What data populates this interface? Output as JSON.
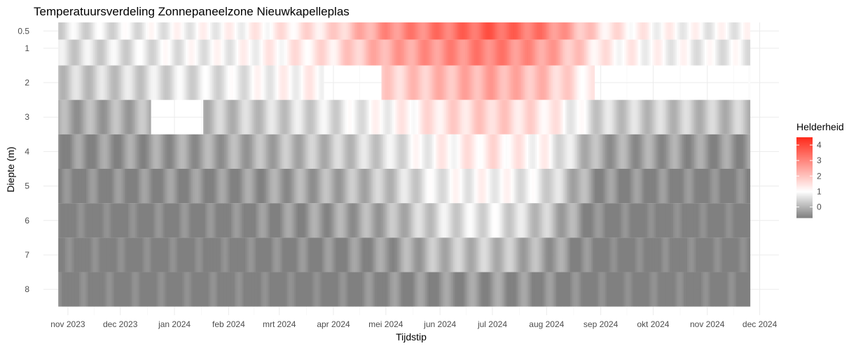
{
  "chart_data": {
    "type": "heatmap",
    "title": "Temperatuursverdeling Zonnepaneelzone Nieuwkapelleplas",
    "xlabel": "Tijdstip",
    "ylabel": "Diepte (m)",
    "x_tick_labels": [
      "nov 2023",
      "dec 2023",
      "jan 2024",
      "feb 2024",
      "mrt 2024",
      "apr 2024",
      "mei 2024",
      "jun 2024",
      "jul 2024",
      "aug 2024",
      "sep 2024",
      "okt 2024",
      "nov 2024",
      "dec 2024"
    ],
    "x_tick_dates": [
      "2023-11-01",
      "2023-12-01",
      "2024-01-01",
      "2024-02-01",
      "2024-03-01",
      "2024-04-01",
      "2024-05-01",
      "2024-06-01",
      "2024-07-01",
      "2024-08-01",
      "2024-09-01",
      "2024-10-01",
      "2024-11-01",
      "2024-12-01"
    ],
    "x_range": [
      "2023-10-18",
      "2024-12-12"
    ],
    "y_tick_labels": [
      "0.5",
      "1",
      "2",
      "3",
      "4",
      "5",
      "6",
      "7",
      "8"
    ],
    "y_tick_values": [
      0.5,
      1,
      2,
      3,
      4,
      5,
      6,
      7,
      8
    ],
    "y_range": [
      8.75,
      0.25
    ],
    "y_reversed": true,
    "depths": [
      0.5,
      1,
      2,
      3,
      4,
      5,
      6,
      7,
      8
    ],
    "data_start": "2023-10-27",
    "data_end": "2024-11-25",
    "legend": {
      "title": "Helderheid",
      "position": "right",
      "ticks": [
        0,
        1,
        2,
        3,
        4
      ],
      "range": [
        -0.7,
        4.5
      ],
      "colors": {
        "low": "#808080",
        "mid": "#ffffff",
        "high": "#ff2a1a"
      },
      "midpoint": 1
    },
    "monthly_profiles": [
      {
        "date": "2023-11-01",
        "values": [
          0.6,
          0.5,
          0.3,
          -0.2,
          -0.5,
          -0.7,
          -0.8,
          -0.8,
          -0.8
        ]
      },
      {
        "date": "2023-12-01",
        "values": [
          0.7,
          0.6,
          0.4,
          -0.1,
          -0.4,
          -0.6,
          -0.8,
          -0.8,
          -0.8
        ]
      },
      {
        "date": "2024-01-01",
        "values": [
          0.9,
          0.8,
          0.6,
          0.1,
          -0.3,
          -0.5,
          -0.7,
          -0.8,
          -0.8
        ]
      },
      {
        "date": "2024-02-01",
        "values": [
          1.0,
          0.9,
          0.7,
          0.2,
          -0.2,
          -0.5,
          -0.7,
          -0.8,
          -0.8
        ]
      },
      {
        "date": "2024-03-01",
        "values": [
          1.3,
          1.2,
          1.0,
          0.4,
          0.0,
          -0.3,
          -0.5,
          -0.7,
          -0.8
        ]
      },
      {
        "date": "2024-04-01",
        "values": [
          1.6,
          1.5,
          1.2,
          0.6,
          0.2,
          -0.1,
          -0.3,
          -0.6,
          -0.8
        ]
      },
      {
        "date": "2024-05-01",
        "values": [
          2.8,
          2.4,
          1.7,
          1.0,
          0.5,
          0.2,
          -0.1,
          -0.4,
          -0.6
        ]
      },
      {
        "date": "2024-06-01",
        "values": [
          3.2,
          2.8,
          2.1,
          1.5,
          1.1,
          0.8,
          0.5,
          0.1,
          -0.5
        ]
      },
      {
        "date": "2024-07-01",
        "values": [
          3.6,
          3.1,
          2.4,
          1.8,
          1.4,
          1.0,
          0.7,
          0.2,
          -0.4
        ]
      },
      {
        "date": "2024-08-01",
        "values": [
          3.1,
          2.6,
          2.0,
          1.4,
          1.0,
          0.6,
          0.2,
          -0.2,
          -0.6
        ]
      },
      {
        "date": "2024-09-01",
        "values": [
          1.5,
          1.3,
          1.0,
          0.4,
          -0.2,
          -0.5,
          -0.7,
          -0.8,
          -0.8
        ]
      },
      {
        "date": "2024-10-01",
        "values": [
          1.1,
          1.0,
          0.8,
          0.3,
          -0.3,
          -0.6,
          -0.8,
          -0.8,
          -0.8
        ]
      },
      {
        "date": "2024-11-01",
        "values": [
          0.9,
          0.8,
          0.6,
          0.2,
          -0.4,
          -0.7,
          -0.8,
          -0.8,
          -0.8
        ]
      }
    ],
    "missing_blocks": [
      {
        "depth": 2,
        "from": "2024-03-27",
        "to": "2024-04-29"
      },
      {
        "depth": 2,
        "from": "2024-08-29",
        "to": "2024-11-25"
      },
      {
        "depth": 3,
        "from": "2023-12-19",
        "to": "2024-01-18"
      }
    ]
  }
}
